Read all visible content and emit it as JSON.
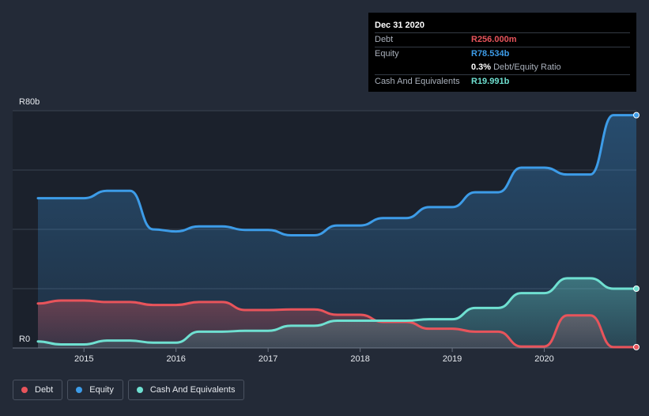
{
  "tooltip": {
    "date": "Dec 31 2020",
    "debt_label": "Debt",
    "debt_value": "R256.000m",
    "equity_label": "Equity",
    "equity_value": "R78.534b",
    "ratio_value": "0.3%",
    "ratio_label": "Debt/Equity Ratio",
    "cash_label": "Cash And Equivalents",
    "cash_value": "R19.991b"
  },
  "legend": [
    {
      "label": "Debt",
      "color": "#e8545b"
    },
    {
      "label": "Equity",
      "color": "#3d9ce8"
    },
    {
      "label": "Cash And Equivalents",
      "color": "#6fe0d1"
    }
  ],
  "colors": {
    "background": "#232a37",
    "debt": "#e8545b",
    "equity": "#3d9ce8",
    "cash": "#6fe0d1"
  },
  "chart_data": {
    "type": "area",
    "y_axis_labels": [
      "R80b",
      "R0"
    ],
    "x_tick_labels": [
      "2015",
      "2016",
      "2017",
      "2018",
      "2019",
      "2020"
    ],
    "ylim": [
      0,
      80
    ],
    "xlim": [
      2014.5,
      2021.0
    ],
    "grid": true,
    "legend_position": "bottom-left",
    "series": [
      {
        "name": "Debt",
        "color": "#e8545b",
        "points": [
          [
            2014.5,
            15
          ],
          [
            2014.75,
            16
          ],
          [
            2015.0,
            16
          ],
          [
            2015.25,
            15.5
          ],
          [
            2015.5,
            15.5
          ],
          [
            2015.75,
            14.5
          ],
          [
            2016.0,
            14.5
          ],
          [
            2016.25,
            15.5
          ],
          [
            2016.5,
            15.5
          ],
          [
            2016.75,
            12.8
          ],
          [
            2017.0,
            12.8
          ],
          [
            2017.25,
            13
          ],
          [
            2017.5,
            13
          ],
          [
            2017.75,
            11.2
          ],
          [
            2018.0,
            11.2
          ],
          [
            2018.25,
            8.8
          ],
          [
            2018.5,
            8.8
          ],
          [
            2018.75,
            6.5
          ],
          [
            2019.0,
            6.5
          ],
          [
            2019.25,
            5.5
          ],
          [
            2019.5,
            5.5
          ],
          [
            2019.75,
            0.5
          ],
          [
            2020.0,
            0.5
          ],
          [
            2020.25,
            11
          ],
          [
            2020.5,
            11
          ],
          [
            2020.75,
            0.3
          ],
          [
            2021.0,
            0.3
          ]
        ]
      },
      {
        "name": "Equity",
        "color": "#3d9ce8",
        "points": [
          [
            2014.5,
            50.5
          ],
          [
            2014.75,
            50.5
          ],
          [
            2015.0,
            50.5
          ],
          [
            2015.25,
            53
          ],
          [
            2015.5,
            53
          ],
          [
            2015.75,
            40
          ],
          [
            2016.0,
            39.3
          ],
          [
            2016.25,
            41
          ],
          [
            2016.5,
            41
          ],
          [
            2016.75,
            39.8
          ],
          [
            2017.0,
            39.8
          ],
          [
            2017.25,
            38
          ],
          [
            2017.5,
            38
          ],
          [
            2017.75,
            41.3
          ],
          [
            2018.0,
            41.3
          ],
          [
            2018.25,
            43.8
          ],
          [
            2018.5,
            43.8
          ],
          [
            2018.75,
            47.5
          ],
          [
            2019.0,
            47.5
          ],
          [
            2019.25,
            52.5
          ],
          [
            2019.5,
            52.5
          ],
          [
            2019.75,
            60.8
          ],
          [
            2020.0,
            60.8
          ],
          [
            2020.25,
            58.5
          ],
          [
            2020.5,
            58.5
          ],
          [
            2020.75,
            78.5
          ],
          [
            2021.0,
            78.5
          ]
        ]
      },
      {
        "name": "Cash And Equivalents",
        "color": "#6fe0d1",
        "points": [
          [
            2014.5,
            2.2
          ],
          [
            2014.75,
            1.2
          ],
          [
            2015.0,
            1.2
          ],
          [
            2015.25,
            2.5
          ],
          [
            2015.5,
            2.5
          ],
          [
            2015.75,
            1.8
          ],
          [
            2016.0,
            1.8
          ],
          [
            2016.25,
            5.5
          ],
          [
            2016.5,
            5.5
          ],
          [
            2016.75,
            5.8
          ],
          [
            2017.0,
            5.8
          ],
          [
            2017.25,
            7.5
          ],
          [
            2017.5,
            7.5
          ],
          [
            2017.75,
            9.2
          ],
          [
            2018.0,
            9.2
          ],
          [
            2018.25,
            9.2
          ],
          [
            2018.5,
            9.2
          ],
          [
            2018.75,
            9.7
          ],
          [
            2019.0,
            9.7
          ],
          [
            2019.25,
            13.5
          ],
          [
            2019.5,
            13.5
          ],
          [
            2019.75,
            18.5
          ],
          [
            2020.0,
            18.5
          ],
          [
            2020.25,
            23.5
          ],
          [
            2020.5,
            23.5
          ],
          [
            2020.75,
            20
          ],
          [
            2021.0,
            20
          ]
        ]
      }
    ]
  }
}
